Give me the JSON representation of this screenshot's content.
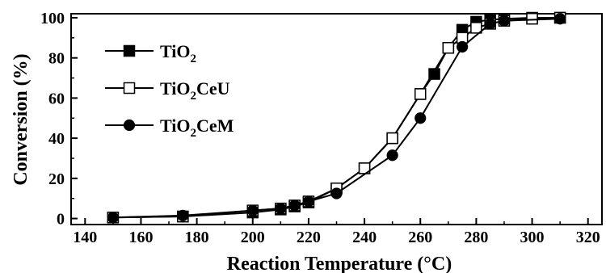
{
  "chart_data": {
    "type": "line",
    "xlabel": "Reaction Temperature (°C)",
    "ylabel": "Conversion (%)",
    "xlim": [
      135,
      325
    ],
    "ylim": [
      -3,
      102
    ],
    "x_ticks": [
      140,
      160,
      180,
      200,
      220,
      240,
      260,
      280,
      300,
      320
    ],
    "y_ticks": [
      0,
      20,
      40,
      60,
      80,
      100
    ],
    "grid": false,
    "legend_position": "top-left",
    "series": [
      {
        "name_main": "TiO",
        "name_sub": "2",
        "name_tail": "",
        "marker": "square-filled",
        "x": [
          150,
          175,
          200,
          210,
          215,
          220,
          230,
          240,
          250,
          260,
          265,
          270,
          275,
          280,
          285,
          290,
          300,
          310
        ],
        "y": [
          0.5,
          1,
          3,
          4.5,
          6,
          8,
          15,
          25,
          40,
          62,
          72,
          85,
          94,
          98,
          99,
          99.5,
          100,
          100
        ]
      },
      {
        "name_main": "TiO",
        "name_sub": "2",
        "name_tail": "CeU",
        "marker": "square-open",
        "x": [
          150,
          175,
          200,
          210,
          215,
          220,
          230,
          240,
          250,
          260,
          270,
          275,
          280,
          285,
          290,
          300,
          310
        ],
        "y": [
          0.5,
          1,
          4,
          5,
          6.5,
          8.5,
          15,
          25,
          40,
          62,
          85,
          90,
          95,
          97,
          98.5,
          99.5,
          100
        ]
      },
      {
        "name_main": "TiO",
        "name_sub": "2",
        "name_tail": "CeM",
        "marker": "circle-filled",
        "x": [
          150,
          175,
          200,
          210,
          215,
          220,
          230,
          250,
          260,
          275,
          285,
          290,
          310
        ],
        "y": [
          0.5,
          1.5,
          4,
          5,
          6.5,
          8.5,
          12.5,
          31.5,
          50,
          85.5,
          97,
          98.5,
          99.5
        ]
      }
    ]
  }
}
